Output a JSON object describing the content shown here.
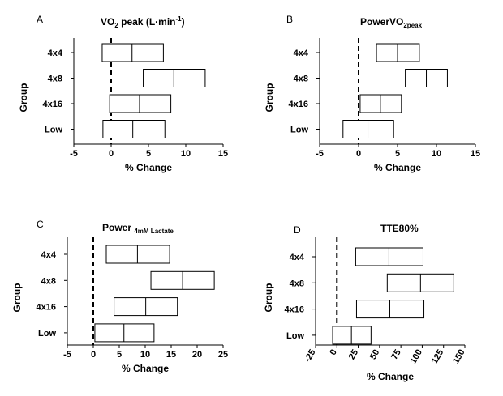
{
  "figure": {
    "panels": [
      {
        "letter": "A",
        "title_main": "VO",
        "title_sub": "2",
        "title_rest": " peak (L",
        "title_sup": "-1",
        "title_after_sup_main": "min",
        "title_end": ")",
        "title_dot": "·"
      },
      {
        "letter": "B",
        "title_main": "PowerVO",
        "title_sub": "2peak"
      },
      {
        "letter": "C",
        "title_main": "Power ",
        "title_sub": "4mM Lactate"
      },
      {
        "letter": "D",
        "title_main": "TTE80%"
      }
    ]
  },
  "chart_data": [
    {
      "type": "box",
      "panel": "A",
      "xlabel": "% Change",
      "ylabel": "Group",
      "categories": [
        "4x4",
        "4x8",
        "4x16",
        "Low"
      ],
      "xlim": [
        -5,
        15
      ],
      "xticks": [
        -5,
        0,
        5,
        10,
        15
      ],
      "reference_line_x": 0,
      "boxes": [
        {
          "group": "4x4",
          "low": -1.2,
          "mid": 2.8,
          "high": 7.0
        },
        {
          "group": "4x8",
          "low": 4.3,
          "mid": 8.4,
          "high": 12.6
        },
        {
          "group": "4x16",
          "low": -0.2,
          "mid": 3.8,
          "high": 8.0
        },
        {
          "group": "Low",
          "low": -1.1,
          "mid": 2.9,
          "high": 7.2
        }
      ]
    },
    {
      "type": "box",
      "panel": "B",
      "xlabel": "% Change",
      "ylabel": "Group",
      "categories": [
        "4x4",
        "4x8",
        "4x16",
        "Low"
      ],
      "xlim": [
        -5,
        15
      ],
      "xticks": [
        -5,
        0,
        5,
        10,
        15
      ],
      "reference_line_x": 0,
      "boxes": [
        {
          "group": "4x4",
          "low": 2.3,
          "mid": 5.0,
          "high": 7.8
        },
        {
          "group": "4x8",
          "low": 6.0,
          "mid": 8.7,
          "high": 11.4
        },
        {
          "group": "4x16",
          "low": 0.2,
          "mid": 2.8,
          "high": 5.5
        },
        {
          "group": "Low",
          "low": -2.0,
          "mid": 1.2,
          "high": 4.5
        }
      ]
    },
    {
      "type": "box",
      "panel": "C",
      "xlabel": "% Change",
      "ylabel": "Group",
      "categories": [
        "4x4",
        "4x8",
        "4x16",
        "Low"
      ],
      "xlim": [
        -5,
        25
      ],
      "xticks": [
        -5,
        0,
        5,
        10,
        15,
        20,
        25
      ],
      "reference_line_x": 0,
      "boxes": [
        {
          "group": "4x4",
          "low": 2.5,
          "mid": 8.5,
          "high": 14.7
        },
        {
          "group": "4x8",
          "low": 11.1,
          "mid": 17.2,
          "high": 23.3
        },
        {
          "group": "4x16",
          "low": 4.0,
          "mid": 10.1,
          "high": 16.2
        },
        {
          "group": "Low",
          "low": 0.3,
          "mid": 5.9,
          "high": 11.7
        }
      ]
    },
    {
      "type": "box",
      "panel": "D",
      "xlabel": "% Change",
      "ylabel": "Group",
      "categories": [
        "4x4",
        "4x8",
        "4x16",
        "Low"
      ],
      "xlim": [
        -25,
        150
      ],
      "xticks": [
        -25,
        0,
        25,
        50,
        75,
        100,
        125,
        150
      ],
      "xtick_rotation": -60,
      "reference_line_x": 0,
      "boxes": [
        {
          "group": "4x4",
          "low": 22,
          "mid": 61,
          "high": 101
        },
        {
          "group": "4x8",
          "low": 59,
          "mid": 98,
          "high": 137
        },
        {
          "group": "4x16",
          "low": 23,
          "mid": 62,
          "high": 102
        },
        {
          "group": "Low",
          "low": -5,
          "mid": 17,
          "high": 40
        }
      ]
    }
  ]
}
